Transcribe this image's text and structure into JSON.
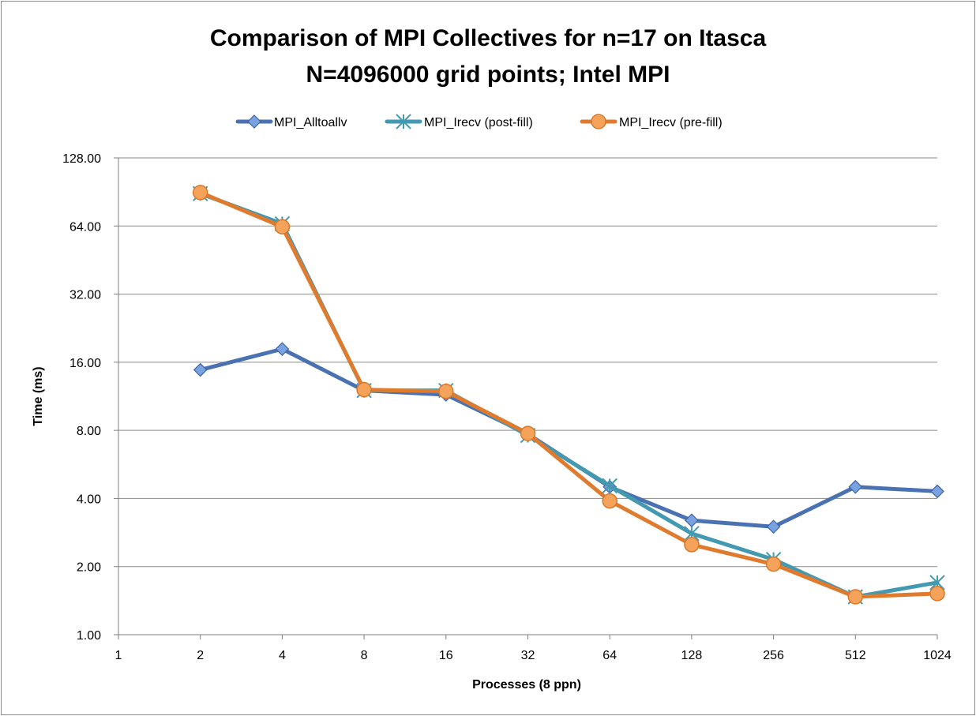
{
  "chart_data": {
    "type": "line",
    "title_lines": [
      "Comparison of MPI Collectives for n=17 on Itasca",
      "N=4096000 grid points; Intel MPI"
    ],
    "xlabel": "Processes (8 ppn)",
    "ylabel": "Time (ms)",
    "y_scale": "log2",
    "ylim": [
      1,
      128
    ],
    "y_ticks": [
      "1.00",
      "2.00",
      "4.00",
      "8.00",
      "16.00",
      "32.00",
      "64.00",
      "128.00"
    ],
    "categories": [
      "1",
      "2",
      "4",
      "8",
      "16",
      "32",
      "64",
      "128",
      "256",
      "512",
      "1024"
    ],
    "grid": true,
    "legend_position": "top",
    "series": [
      {
        "name": "MPI_Alltoallv",
        "color": "#4a72b2",
        "marker": "diamond",
        "values": [
          null,
          14.8,
          18.3,
          12.0,
          11.5,
          7.7,
          4.5,
          3.2,
          3.0,
          4.5,
          4.3
        ]
      },
      {
        "name": "MPI_Irecv (post-fill)",
        "color": "#4299b0",
        "marker": "star",
        "values": [
          null,
          89.0,
          65.5,
          12.0,
          12.0,
          7.6,
          4.55,
          2.8,
          2.15,
          1.47,
          1.7
        ]
      },
      {
        "name": "MPI_Irecv (pre-fill)",
        "color": "#e07b2e",
        "marker": "circle",
        "values": [
          null,
          90.0,
          63.5,
          12.1,
          11.9,
          7.75,
          3.9,
          2.5,
          2.05,
          1.47,
          1.52
        ]
      }
    ]
  }
}
